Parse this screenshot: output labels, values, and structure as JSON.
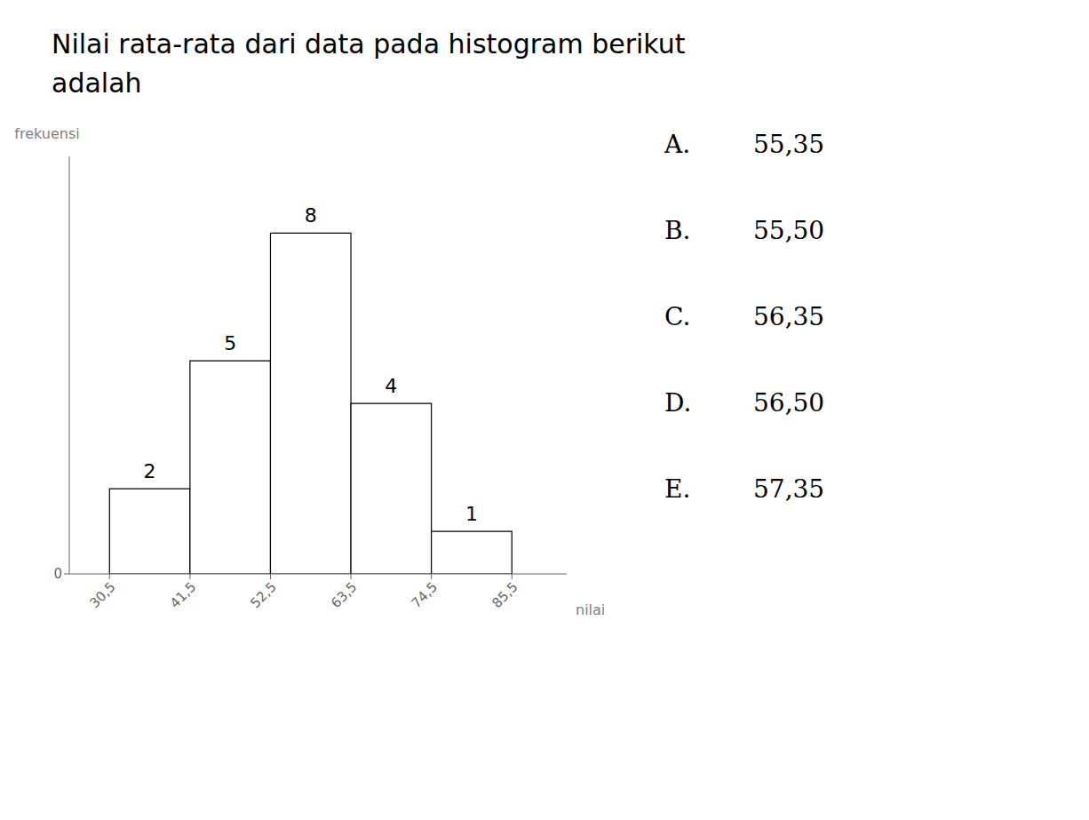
{
  "chart_data": {
    "type": "histogram",
    "title": "Nilai rata-rata dari data pada histogram berikut\nadalah",
    "bins": [
      30.5,
      41.5,
      52.5,
      63.5,
      74.5,
      85.5
    ],
    "values": [
      2,
      5,
      8,
      4,
      1
    ],
    "color": "#ffffff",
    "xlabel": "nilai",
    "ylabel": "frekuensi",
    "xlim": [
      25,
      93
    ],
    "xticks": [
      {
        "value": 30.5,
        "label": "30,5"
      },
      {
        "value": 41.5,
        "label": "41,5"
      },
      {
        "value": 52.5,
        "label": "52,5"
      },
      {
        "value": 63.5,
        "label": "63,5"
      },
      {
        "value": 74.5,
        "label": "74,5"
      },
      {
        "value": 85.5,
        "label": "85,5"
      }
    ],
    "ylim": [
      0,
      9.8
    ],
    "yticks": [
      0
    ],
    "data_labels": true,
    "grid": false,
    "annotations": [
      {
        "label": "A.",
        "text": "55,35"
      },
      {
        "label": "B.",
        "text": "55,50"
      },
      {
        "label": "C.",
        "text": "56,35"
      },
      {
        "label": "D.",
        "text": "56,50"
      },
      {
        "label": "E.",
        "text": "57,35"
      }
    ]
  }
}
